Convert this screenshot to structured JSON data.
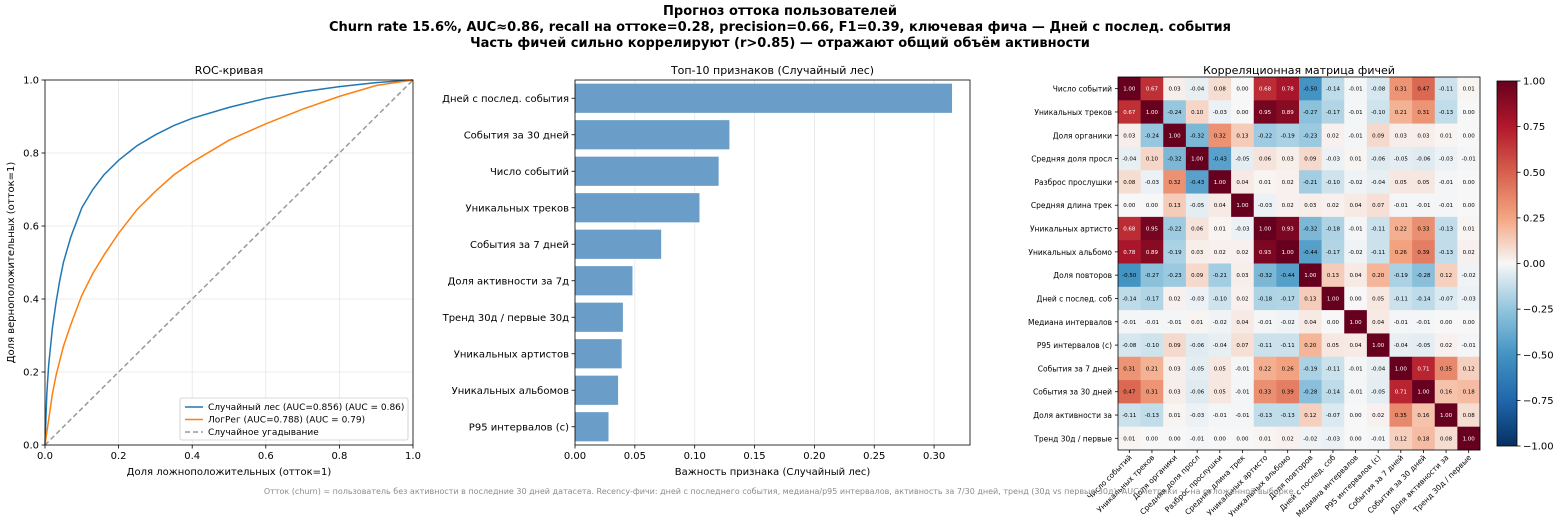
{
  "figure": {
    "title_lines": [
      "Прогноз оттока пользователей",
      "Churn rate 15.6%, AUC≈0.86, recall на оттоке=0.28, precision=0.66, F1=0.39, ключевая фича — Дней с послед. события",
      "Часть фичей сильно коррелируют (r>0.85) — отражают общий объём активности"
    ],
    "footer": "Отток (churn) = пользователь без активности в последние 30 дней датасета. Recency-фичи: дней с последнего события, медиана/p95 интервалов, активность за 7/30 дней, тренд (30д vs первые 30д). AUC/метрики — на отложенной выборке."
  },
  "chart_data": [
    {
      "type": "line",
      "title": "ROC-кривая",
      "xlabel": "Доля ложноположительных (отток=1)",
      "ylabel": "Доля верноположительных (отток=1)",
      "xlim": [
        0,
        1
      ],
      "ylim": [
        0,
        1
      ],
      "x_ticks": [
        0.0,
        0.2,
        0.4,
        0.6,
        0.8,
        1.0
      ],
      "y_ticks": [
        0.0,
        0.2,
        0.4,
        0.6,
        0.8,
        1.0
      ],
      "tick_labels": [
        "0.0",
        "0.2",
        "0.4",
        "0.6",
        "0.8",
        "1.0"
      ],
      "grid": true,
      "legend_position": "lower-right",
      "series": [
        {
          "name": "Случайный лес (AUC=0.856) (AUC = 0.86)",
          "color": "#1f77b4",
          "x": [
            0,
            0.005,
            0.01,
            0.02,
            0.03,
            0.04,
            0.05,
            0.07,
            0.1,
            0.13,
            0.16,
            0.2,
            0.25,
            0.3,
            0.35,
            0.4,
            0.5,
            0.6,
            0.7,
            0.8,
            0.9,
            1.0
          ],
          "y": [
            0,
            0.14,
            0.22,
            0.32,
            0.39,
            0.45,
            0.5,
            0.57,
            0.65,
            0.7,
            0.74,
            0.78,
            0.82,
            0.85,
            0.875,
            0.895,
            0.925,
            0.95,
            0.968,
            0.982,
            0.993,
            1.0
          ]
        },
        {
          "name": "ЛогРег (AUC=0.788) (AUC = 0.79)",
          "color": "#ff7f0e",
          "x": [
            0,
            0.01,
            0.02,
            0.03,
            0.05,
            0.07,
            0.1,
            0.13,
            0.16,
            0.2,
            0.25,
            0.3,
            0.35,
            0.4,
            0.45,
            0.5,
            0.6,
            0.7,
            0.8,
            0.9,
            1.0
          ],
          "y": [
            0,
            0.07,
            0.14,
            0.19,
            0.27,
            0.33,
            0.41,
            0.47,
            0.52,
            0.58,
            0.645,
            0.695,
            0.74,
            0.775,
            0.805,
            0.835,
            0.88,
            0.92,
            0.955,
            0.985,
            1.0
          ]
        },
        {
          "name": "Случайное угадывание",
          "color": "#999999",
          "dashed": true,
          "x": [
            0,
            1
          ],
          "y": [
            0,
            1
          ]
        }
      ]
    },
    {
      "type": "bar",
      "orientation": "horizontal",
      "title": "Топ-10 признаков (Случайный лес)",
      "xlabel": "Важность признака (Случайный лес)",
      "xlim": [
        0,
        0.33
      ],
      "x_ticks": [
        0.0,
        0.05,
        0.1,
        0.15,
        0.2,
        0.25,
        0.3
      ],
      "x_tick_labels": [
        "0.00",
        "0.05",
        "0.10",
        "0.15",
        "0.20",
        "0.25",
        "0.30"
      ],
      "grid": true,
      "color": "#6a9ec8",
      "categories": [
        "Дней с послед. события",
        "События за 30 дней",
        "Число событий",
        "Уникальных треков",
        "События за 7 дней",
        "Доля активности за 7д",
        "Тренд 30д / первые 30д",
        "Уникальных артистов",
        "Уникальных альбомов",
        "P95 интервалов (с)"
      ],
      "values": [
        0.315,
        0.129,
        0.12,
        0.104,
        0.072,
        0.048,
        0.04,
        0.039,
        0.036,
        0.028
      ]
    },
    {
      "type": "heatmap",
      "title": "Корреляционная матрица фичей",
      "row_labels": [
        "Число событий",
        "Уникальных треков",
        "Доля органики",
        "Средняя доля просл",
        "Разброс прослушки",
        "Средняя длина трек",
        "Уникальных артисто",
        "Уникальных альбомо",
        "Доля повторов",
        "Дней с послед. соб",
        "Медиана интервалов",
        "P95 интервалов (с)",
        "События за 7 дней",
        "События за 30 дней",
        "Доля активности за",
        "Тренд 30д / первые"
      ],
      "col_labels": [
        "Число событий",
        "Уникальных треков",
        "Доля органики",
        "Средняя доля просл",
        "Разброс прослушки",
        "Средняя длина трек",
        "Уникальных артисто",
        "Уникальных альбомо",
        "Доля повторов",
        "Дней с послед. соб",
        "Медиана интервалов",
        "P95 интервалов (с)",
        "События за 7 дней",
        "События за 30 дней",
        "Доля активности за",
        "Тренд 30д / первые"
      ],
      "values": [
        [
          1.0,
          0.67,
          0.03,
          -0.04,
          0.08,
          0.0,
          0.68,
          0.78,
          -0.5,
          -0.14,
          -0.01,
          -0.08,
          0.31,
          0.47,
          -0.11,
          0.01
        ],
        [
          0.67,
          1.0,
          -0.24,
          0.1,
          -0.03,
          0.0,
          0.95,
          0.89,
          -0.27,
          -0.17,
          -0.01,
          -0.1,
          0.21,
          0.31,
          -0.13,
          0.0
        ],
        [
          0.03,
          -0.24,
          1.0,
          -0.32,
          0.32,
          0.13,
          -0.22,
          -0.19,
          -0.23,
          0.02,
          -0.01,
          0.09,
          0.03,
          0.03,
          0.01,
          -0.0
        ],
        [
          -0.04,
          0.1,
          -0.32,
          1.0,
          -0.43,
          -0.05,
          0.06,
          0.03,
          0.09,
          -0.03,
          0.01,
          -0.06,
          -0.05,
          -0.06,
          -0.03,
          -0.01
        ],
        [
          0.08,
          -0.03,
          0.32,
          -0.43,
          1.0,
          0.04,
          0.01,
          0.02,
          -0.21,
          -0.1,
          -0.02,
          -0.04,
          0.05,
          0.05,
          -0.01,
          -0.0
        ],
        [
          0.0,
          0.0,
          0.13,
          -0.05,
          0.04,
          1.0,
          -0.03,
          0.02,
          0.03,
          0.02,
          0.04,
          0.07,
          -0.01,
          -0.01,
          -0.01,
          -0.0
        ],
        [
          0.68,
          0.95,
          -0.22,
          0.06,
          0.01,
          -0.03,
          1.0,
          0.93,
          -0.32,
          -0.18,
          -0.01,
          -0.11,
          0.22,
          0.33,
          -0.13,
          0.01
        ],
        [
          0.78,
          0.89,
          -0.19,
          0.03,
          0.02,
          0.02,
          0.93,
          1.0,
          -0.44,
          -0.17,
          -0.02,
          -0.11,
          0.26,
          0.39,
          -0.13,
          0.02
        ],
        [
          -0.5,
          -0.27,
          -0.23,
          0.09,
          -0.21,
          0.03,
          -0.32,
          -0.44,
          1.0,
          0.13,
          0.04,
          0.2,
          -0.19,
          -0.28,
          0.12,
          -0.02
        ],
        [
          -0.14,
          -0.17,
          0.02,
          -0.03,
          -0.1,
          0.02,
          -0.18,
          -0.17,
          0.13,
          1.0,
          0.0,
          0.05,
          -0.11,
          -0.14,
          -0.07,
          -0.03
        ],
        [
          -0.01,
          -0.01,
          -0.01,
          0.01,
          -0.02,
          0.04,
          -0.01,
          -0.02,
          0.04,
          0.0,
          1.0,
          0.04,
          -0.01,
          -0.01,
          -0.0,
          -0.0
        ],
        [
          -0.08,
          -0.1,
          0.09,
          -0.06,
          -0.04,
          0.07,
          -0.11,
          -0.11,
          0.2,
          0.05,
          0.04,
          1.0,
          -0.04,
          -0.05,
          0.02,
          -0.01
        ],
        [
          0.31,
          0.21,
          0.03,
          -0.05,
          0.05,
          -0.01,
          0.22,
          0.26,
          -0.19,
          -0.11,
          -0.01,
          -0.04,
          1.0,
          0.71,
          0.35,
          0.12
        ],
        [
          0.47,
          0.31,
          0.03,
          -0.06,
          0.05,
          -0.01,
          0.33,
          0.39,
          -0.28,
          -0.14,
          -0.01,
          -0.05,
          0.71,
          1.0,
          0.16,
          0.18
        ],
        [
          -0.11,
          -0.13,
          0.01,
          -0.03,
          -0.01,
          -0.01,
          -0.13,
          -0.13,
          0.12,
          -0.07,
          -0.0,
          0.02,
          0.35,
          0.16,
          1.0,
          0.08
        ],
        [
          0.01,
          0.0,
          -0.0,
          -0.01,
          -0.0,
          -0.0,
          0.01,
          0.02,
          -0.02,
          -0.03,
          -0.0,
          -0.01,
          0.12,
          0.18,
          0.08,
          1.0
        ]
      ],
      "colormap": "RdBu_r",
      "vmin": -1,
      "vmax": 1,
      "colorbar_ticks": [
        1.0,
        0.75,
        0.5,
        0.25,
        0.0,
        -0.25,
        -0.5,
        -0.75,
        -1.0
      ],
      "colorbar_tick_labels": [
        "1.00",
        "0.75",
        "0.50",
        "0.25",
        "0.00",
        "−0.25",
        "−0.50",
        "−0.75",
        "−1.00"
      ]
    }
  ]
}
